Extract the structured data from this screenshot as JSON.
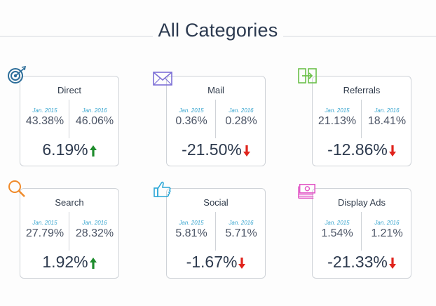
{
  "page": {
    "title": "All Categories"
  },
  "colors": {
    "up": "#1e8c2c",
    "down": "#e0231c",
    "period": "#3aa6cf"
  },
  "cards": [
    {
      "title": "Direct",
      "icon": "target-icon",
      "icon_color": "#2d6e9a",
      "label_2015": "Jan. 2015",
      "value_2015": "43.38%",
      "label_2016": "Jan. 2016",
      "value_2016": "46.06%",
      "change": "6.19%",
      "direction": "up"
    },
    {
      "title": "Mail",
      "icon": "envelope-icon",
      "icon_color": "#7c6fd6",
      "label_2015": "Jan. 2015",
      "value_2015": "0.36%",
      "label_2016": "Jan. 2016",
      "value_2016": "0.28%",
      "change": "-21.50%",
      "direction": "down"
    },
    {
      "title": "Referrals",
      "icon": "referral-arrows-icon",
      "icon_color": "#6cc04a",
      "label_2015": "Jan. 2015",
      "value_2015": "21.13%",
      "label_2016": "Jan. 2016",
      "value_2016": "18.41%",
      "change": "-12.86%",
      "direction": "down"
    },
    {
      "title": "Search",
      "icon": "magnifier-icon",
      "icon_color": "#f08a2a",
      "label_2015": "Jan. 2015",
      "value_2015": "27.79%",
      "label_2016": "Jan. 2016",
      "value_2016": "28.32%",
      "change": "1.92%",
      "direction": "up"
    },
    {
      "title": "Social",
      "icon": "thumbs-up-icon",
      "icon_color": "#2aa6d6",
      "label_2015": "Jan. 2015",
      "value_2015": "5.81%",
      "label_2016": "Jan. 2016",
      "value_2016": "5.71%",
      "change": "-1.67%",
      "direction": "down"
    },
    {
      "title": "Display Ads",
      "icon": "money-stack-icon",
      "icon_color": "#e14fc4",
      "label_2015": "Jan. 2015",
      "value_2015": "1.54%",
      "label_2016": "Jan. 2016",
      "value_2016": "1.21%",
      "change": "-21.33%",
      "direction": "down"
    }
  ]
}
